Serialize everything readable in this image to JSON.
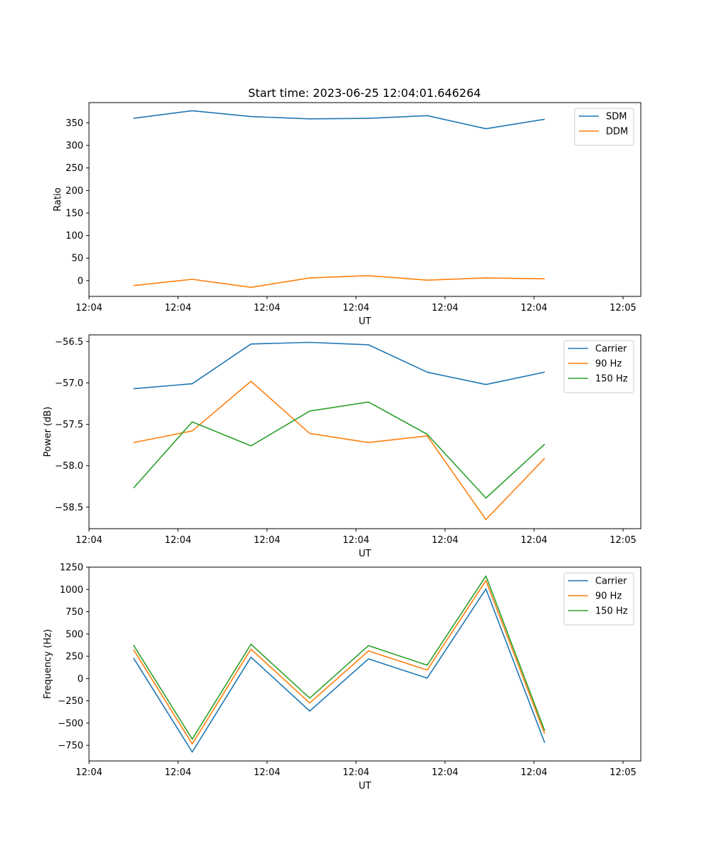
{
  "figure": {
    "title": "Start time: 2023-06-25 12:04:01.646264"
  },
  "chart_data": [
    {
      "type": "line",
      "ylabel": "Ratio",
      "xlabel": "UT",
      "xlim": [
        0,
        9.3
      ],
      "ylim": [
        -35,
        395
      ],
      "yticks": [
        0,
        50,
        100,
        150,
        200,
        250,
        300,
        350
      ],
      "xticks": [
        {
          "x": 0.0,
          "label": "12:04"
        },
        {
          "x": 1.5,
          "label": "12:04"
        },
        {
          "x": 3.0,
          "label": "12:04"
        },
        {
          "x": 4.5,
          "label": "12:04"
        },
        {
          "x": 6.0,
          "label": "12:04"
        },
        {
          "x": 7.5,
          "label": "12:04"
        },
        {
          "x": 9.0,
          "label": "12:05"
        }
      ],
      "x": [
        0.75,
        1.74,
        2.73,
        3.72,
        4.71,
        5.7,
        6.69,
        7.68
      ],
      "legend_position": "top-right",
      "series": [
        {
          "name": "SDM",
          "color": "#1f77b4",
          "values": [
            360,
            377,
            364,
            359,
            360,
            366,
            337,
            358
          ]
        },
        {
          "name": "DDM",
          "color": "#ff7f0e",
          "values": [
            -11,
            3,
            -15,
            6,
            11,
            1,
            6,
            4
          ]
        }
      ]
    },
    {
      "type": "line",
      "ylabel": "Power (dB)",
      "xlabel": "UT",
      "xlim": [
        0,
        9.3
      ],
      "ylim": [
        -58.76,
        -56.42
      ],
      "yticks": [
        -58.5,
        -58.0,
        -57.5,
        -57.0,
        -56.5
      ],
      "ytick_labels": [
        "−58.5",
        "−58.0",
        "−57.5",
        "−57.0",
        "−56.5"
      ],
      "xticks": [
        {
          "x": 0.0,
          "label": "12:04"
        },
        {
          "x": 1.5,
          "label": "12:04"
        },
        {
          "x": 3.0,
          "label": "12:04"
        },
        {
          "x": 4.5,
          "label": "12:04"
        },
        {
          "x": 6.0,
          "label": "12:04"
        },
        {
          "x": 7.5,
          "label": "12:04"
        },
        {
          "x": 9.0,
          "label": "12:05"
        }
      ],
      "x": [
        0.75,
        1.74,
        2.73,
        3.72,
        4.71,
        5.7,
        6.69,
        7.68
      ],
      "legend_position": "top-right",
      "series": [
        {
          "name": "Carrier",
          "color": "#1f77b4",
          "values": [
            -57.07,
            -57.01,
            -56.53,
            -56.51,
            -56.54,
            -56.87,
            -57.02,
            -56.87
          ]
        },
        {
          "name": "90 Hz",
          "color": "#ff7f0e",
          "values": [
            -57.72,
            -57.58,
            -56.98,
            -57.61,
            -57.72,
            -57.64,
            -58.65,
            -57.91
          ]
        },
        {
          "name": "150 Hz",
          "color": "#2ca02c",
          "values": [
            -58.27,
            -57.47,
            -57.76,
            -57.34,
            -57.23,
            -57.62,
            -58.39,
            -57.74
          ]
        }
      ]
    },
    {
      "type": "line",
      "ylabel": "Frequency (Hz)",
      "xlabel": "UT",
      "xlim": [
        0,
        9.3
      ],
      "ylim": [
        -925,
        1250
      ],
      "yticks": [
        -750,
        -500,
        -250,
        0,
        250,
        500,
        750,
        1000,
        1250
      ],
      "ytick_labels": [
        "−750",
        "−500",
        "−250",
        "0",
        "250",
        "500",
        "750",
        "1000",
        "1250"
      ],
      "xticks": [
        {
          "x": 0.0,
          "label": "12:04"
        },
        {
          "x": 1.5,
          "label": "12:04"
        },
        {
          "x": 3.0,
          "label": "12:04"
        },
        {
          "x": 4.5,
          "label": "12:04"
        },
        {
          "x": 6.0,
          "label": "12:04"
        },
        {
          "x": 7.5,
          "label": "12:04"
        },
        {
          "x": 9.0,
          "label": "12:05"
        }
      ],
      "x": [
        0.75,
        1.74,
        2.73,
        3.72,
        4.71,
        5.7,
        6.69,
        7.68
      ],
      "legend_position": "top-right",
      "series": [
        {
          "name": "Carrier",
          "color": "#1f77b4",
          "values": [
            230,
            -825,
            240,
            -365,
            220,
            5,
            1005,
            -720
          ]
        },
        {
          "name": "90 Hz",
          "color": "#ff7f0e",
          "values": [
            325,
            -735,
            330,
            -275,
            310,
            95,
            1100,
            -620
          ]
        },
        {
          "name": "150 Hz",
          "color": "#2ca02c",
          "values": [
            375,
            -680,
            385,
            -220,
            370,
            150,
            1150,
            -585
          ]
        }
      ]
    }
  ]
}
